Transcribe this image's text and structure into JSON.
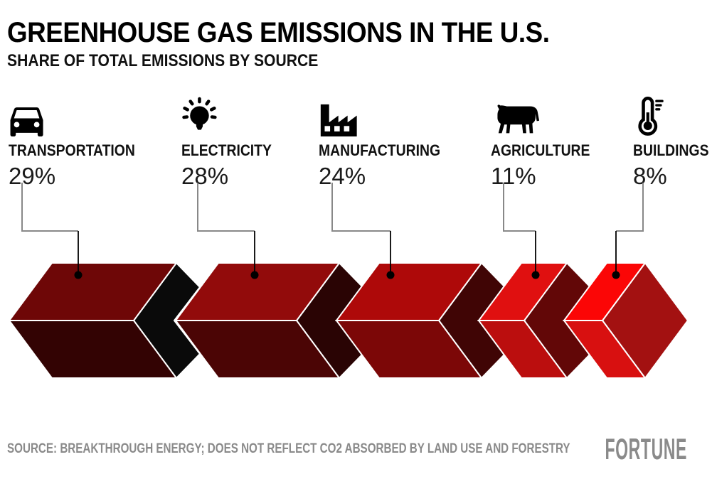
{
  "header": {
    "title": "GREENHOUSE GAS EMISSIONS IN THE U.S.",
    "subtitle": "SHARE OF TOTAL EMISSIONS BY SOURCE"
  },
  "footer": {
    "source": "SOURCE: BREAKTHROUGH ENERGY; DOES NOT REFLECT CO2 ABSORBED BY LAND USE AND FORESTRY",
    "brand": "FORTUNE"
  },
  "chart_data": {
    "type": "bar",
    "variant": "proportional-3d-chevron-pictogram",
    "title": "GREENHOUSE GAS EMISSIONS IN THE U.S.",
    "subtitle": "SHARE OF TOTAL EMISSIONS BY SOURCE",
    "unit": "percent of total emissions",
    "categories": [
      "TRANSPORTATION",
      "ELECTRICITY",
      "MANUFACTURING",
      "AGRICULTURE",
      "BUILDINGS"
    ],
    "values": [
      29,
      28,
      24,
      11,
      8
    ],
    "value_labels": [
      "29%",
      "28%",
      "24%",
      "11%",
      "8%"
    ],
    "icons": [
      "car-icon",
      "lightbulb-icon",
      "factory-icon",
      "cow-icon",
      "thermometer-icon"
    ],
    "grid": false,
    "legend_position": "none",
    "colors": {
      "segment_top": [
        "#6e0707",
        "#920b0b",
        "#ae0909",
        "#e01010",
        "#fb0606"
      ],
      "segment_bottom": [
        "#330303",
        "#4b0505",
        "#7c0707",
        "#bb0e0e",
        "#d81010"
      ],
      "notch_inner": [
        "#0a0a0a",
        "#2a0404",
        "#400505",
        "#620707"
      ],
      "end_cap": "#a31111",
      "separator": "#ffffff",
      "leader_line": "#888888",
      "callout_dot": "#000000",
      "label_text": "#111111",
      "value_text": "#1a1a1a",
      "footer_text": "#8a8a8a"
    }
  }
}
